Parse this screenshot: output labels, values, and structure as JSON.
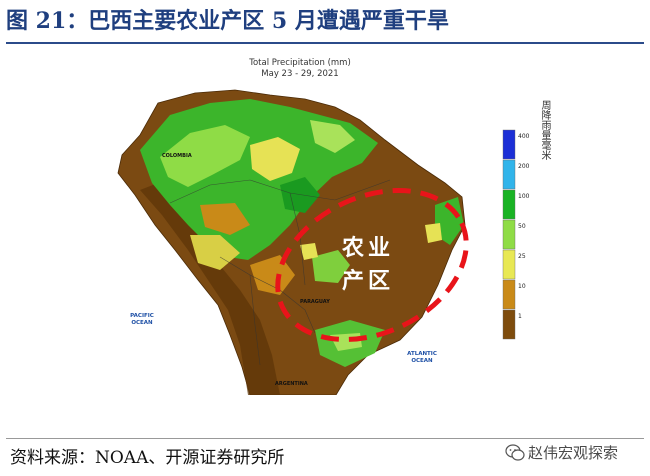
{
  "figure_title": "图 21：巴西主要农业产区 5 月遭遇严重干旱",
  "map": {
    "title_line1": "Total Precipitation (mm)",
    "title_line2": "May 23 - 29, 2021",
    "labels": {
      "pacific": [
        "PACIFIC",
        "OCEAN"
      ],
      "atlantic": [
        "ATLANTIC",
        "OCEAN"
      ],
      "colombia": "COLOMBIA",
      "paraguay": "PARAGUAY",
      "argentina": "ARGENTINA"
    },
    "annotation": [
      "农业",
      "产区"
    ],
    "annotation_color": "#e8141a"
  },
  "legend": {
    "unit_label": "周降雨量毫米",
    "ticks": [
      "400",
      "200",
      "100",
      "50",
      "25",
      "10",
      "1"
    ],
    "colors": [
      "#1c2fd6",
      "#31b4ea",
      "#19b324",
      "#8fdc46",
      "#e8e854",
      "#c98a18",
      "#7e4c0d"
    ]
  },
  "source": "资料来源：NOAA、开源证券研究所",
  "watermark": "赵伟宏观探索"
}
